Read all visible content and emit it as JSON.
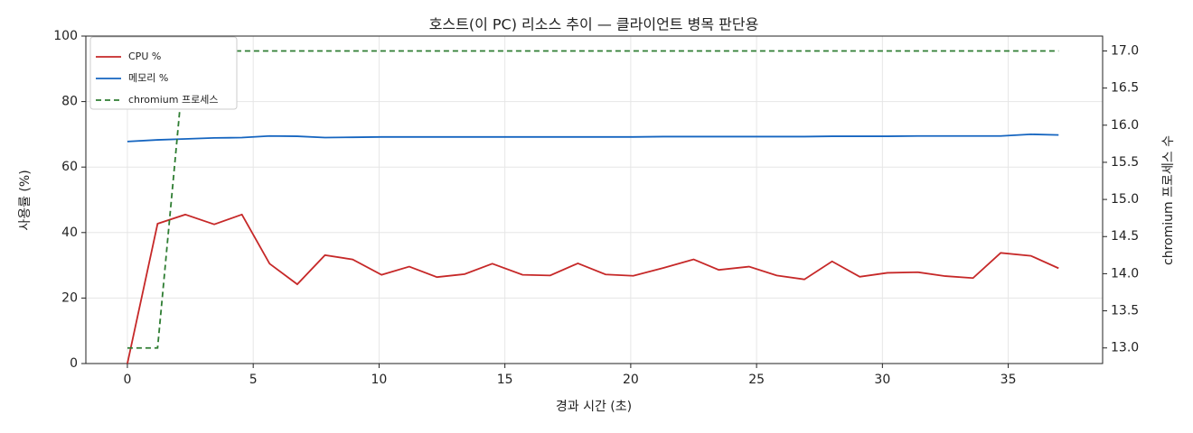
{
  "chart_data": {
    "type": "line",
    "title": "호스트(이 PC) 리소스 추이 — 클라이언트 병목 판단용",
    "x_label": "경과 시간 (초)",
    "y_label": "사용률 (%)",
    "y2_label": "chromium 프로세스 수",
    "x": [
      0,
      1.2,
      2.3,
      3.45,
      4.55,
      5.65,
      6.75,
      7.85,
      8.95,
      10.1,
      11.2,
      12.3,
      13.4,
      14.5,
      15.7,
      16.8,
      17.9,
      19.0,
      20.1,
      21.3,
      22.5,
      23.5,
      24.7,
      25.8,
      26.9,
      28.0,
      29.1,
      30.2,
      31.4,
      32.5,
      33.6,
      34.7,
      35.9,
      37.0
    ],
    "series": [
      {
        "name": "CPU %",
        "color": "#c62828",
        "dash": false,
        "values": [
          0,
          42.7,
          45.5,
          42.5,
          45.5,
          30.5,
          24.2,
          33.1,
          31.8,
          27.1,
          29.6,
          26.4,
          27.3,
          30.5,
          27.1,
          26.9,
          30.6,
          27.2,
          26.8,
          29.2,
          31.8,
          28.6,
          29.6,
          26.9,
          25.7,
          31.2,
          26.5,
          27.7,
          27.9,
          26.7,
          26.1,
          33.8,
          32.9,
          29.1
        ]
      },
      {
        "name": "메모리 %",
        "color": "#1565c0",
        "dash": false,
        "values": [
          67.8,
          68.3,
          68.6,
          68.9,
          69.0,
          69.5,
          69.4,
          69.0,
          69.1,
          69.2,
          69.2,
          69.2,
          69.2,
          69.2,
          69.2,
          69.2,
          69.2,
          69.2,
          69.2,
          69.3,
          69.3,
          69.3,
          69.3,
          69.3,
          69.3,
          69.4,
          69.4,
          69.4,
          69.5,
          69.5,
          69.5,
          69.5,
          70.0,
          69.8
        ]
      },
      {
        "name": "chromium 프로세스",
        "color": "#2e7d32",
        "dash": true,
        "axis": "y2",
        "values": [
          13,
          13,
          17,
          17,
          17,
          17,
          17,
          17,
          17,
          17,
          17,
          17,
          17,
          17,
          17,
          17,
          17,
          17,
          17,
          17,
          17,
          17,
          17,
          17,
          17,
          17,
          17,
          17,
          17,
          17,
          17,
          17,
          17,
          17
        ]
      }
    ],
    "xlim": [
      -1.65,
      38.75
    ],
    "xticks": [
      0,
      5,
      10,
      15,
      20,
      25,
      30,
      35
    ],
    "ylim": [
      0,
      100
    ],
    "yticks": [
      0,
      20,
      40,
      60,
      80,
      100
    ],
    "y2lim": [
      12.79,
      17.2
    ],
    "y2ticks": [
      {
        "value": 13,
        "label": "13.0"
      },
      13.5,
      {
        "value": 14,
        "label": "14.0"
      },
      14.5,
      {
        "value": 15,
        "label": "15.0"
      },
      15.5,
      {
        "value": 16,
        "label": "16.0"
      },
      16.5,
      {
        "value": 17,
        "label": "17.0"
      }
    ],
    "grid": true,
    "legend": "upper-left"
  }
}
